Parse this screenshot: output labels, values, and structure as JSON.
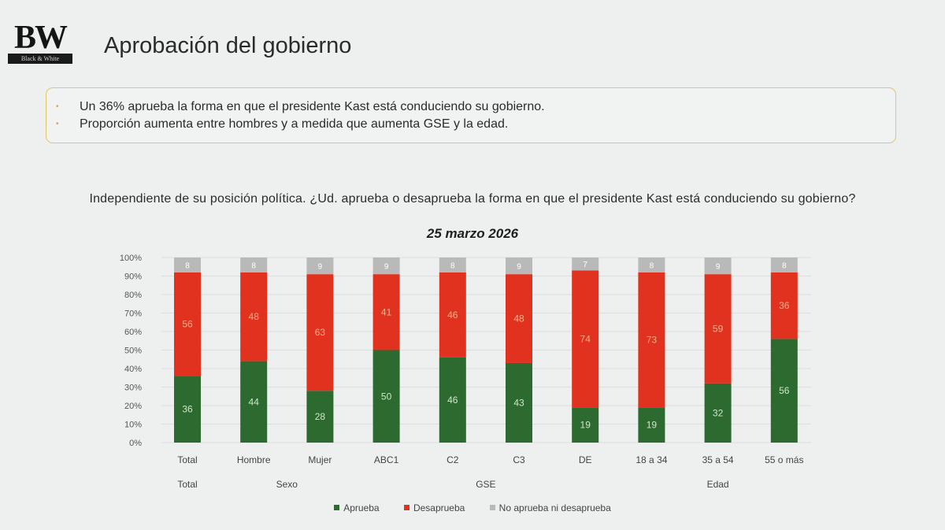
{
  "logo": {
    "letters": "BW",
    "tagline": "Black & White"
  },
  "page_title": "Aprobación del gobierno",
  "callout": {
    "bullets": [
      "Un 36% aprueba la forma en que el presidente Kast está conduciendo su gobierno.",
      "Proporción aumenta entre hombres y a medida que aumenta GSE y la edad."
    ]
  },
  "colors": {
    "aprueba": "#2c6a2f",
    "desaprueba": "#e0321f",
    "no_aprueba_ni_desaprueba": "#b9b9b9",
    "callout_border": "#e2c66a"
  },
  "chart_data": {
    "type": "bar",
    "stacked": true,
    "title": "Independiente de su posición política. ¿Ud. aprueba o desaprueba la forma en que el presidente Kast está conduciendo su gobierno?",
    "subtitle": "25 marzo 2026",
    "categories": [
      "Total",
      "Hombre",
      "Mujer",
      "ABC1",
      "C2",
      "C3",
      "DE",
      "18 a 34",
      "35 a 54",
      "55 o más"
    ],
    "groups": [
      {
        "label": "Total",
        "categories": [
          "Total"
        ]
      },
      {
        "label": "Sexo",
        "categories": [
          "Hombre",
          "Mujer"
        ]
      },
      {
        "label": "GSE",
        "categories": [
          "ABC1",
          "C2",
          "C3",
          "DE"
        ]
      },
      {
        "label": "Edad",
        "categories": [
          "18 a 34",
          "35 a 54",
          "55 o más"
        ]
      }
    ],
    "series": [
      {
        "name": "Aprueba",
        "color": "#2c6a2f",
        "values": [
          36,
          44,
          28,
          50,
          46,
          43,
          19,
          19,
          32,
          56
        ]
      },
      {
        "name": "Desaprueba",
        "color": "#e0321f",
        "values": [
          56,
          48,
          63,
          41,
          46,
          48,
          74,
          73,
          59,
          36
        ]
      },
      {
        "name": "No aprueba ni desaprueba",
        "color": "#b9b9b9",
        "values": [
          8,
          8,
          9,
          9,
          8,
          9,
          7,
          8,
          9,
          8
        ]
      }
    ],
    "ylim": [
      0,
      100
    ],
    "yticks": [
      "0%",
      "10%",
      "20%",
      "30%",
      "40%",
      "50%",
      "60%",
      "70%",
      "80%",
      "90%",
      "100%"
    ],
    "legend_position": "bottom",
    "grid": true
  }
}
